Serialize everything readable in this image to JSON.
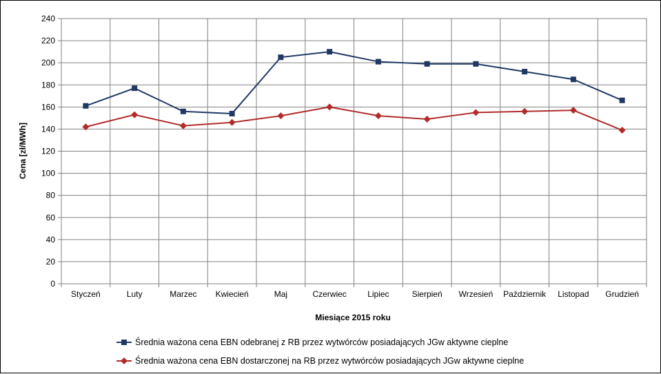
{
  "chart_data": {
    "type": "line",
    "xlabel": "Miesiące 2015  roku",
    "ylabel": "Cena [zł/MWh]",
    "ylim": [
      0,
      240
    ],
    "ytick_step": 20,
    "grid": true,
    "legend_position": "bottom",
    "categories": [
      "Styczeń",
      "Luty",
      "Marzec",
      "Kwiecień",
      "Maj",
      "Czerwiec",
      "Lipiec",
      "Sierpień",
      "Wrzesień",
      "Październik",
      "Listopad",
      "Grudzień"
    ],
    "series": [
      {
        "name": "Średnia ważona cena EBN odebranej z RB przez wytwórców posiadających JGw aktywne cieplne",
        "color": "#1f3864",
        "marker": "square",
        "values": [
          161,
          177,
          156,
          154,
          205,
          210,
          201,
          199,
          199,
          192,
          185,
          166
        ]
      },
      {
        "name": "Średnia ważona cena EBN dostarczonej na RB przez wytwórców posiadających JGw aktywne cieplne",
        "color": "#b22a2a",
        "marker": "diamond",
        "values": [
          142,
          153,
          143,
          146,
          152,
          160,
          152,
          149,
          155,
          156,
          157,
          139
        ]
      }
    ]
  }
}
